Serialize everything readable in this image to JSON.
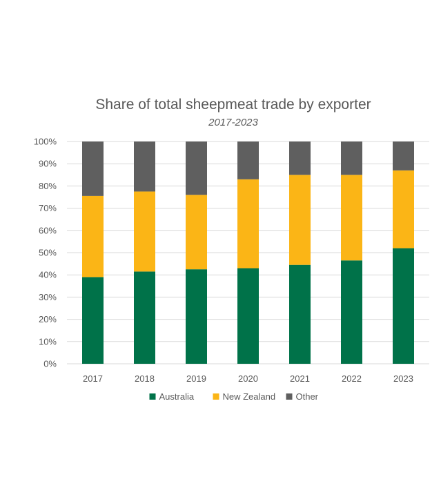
{
  "chart_data": {
    "type": "bar",
    "stacked": true,
    "title": "Share of total sheepmeat trade by exporter",
    "subtitle": "2017-2023",
    "xlabel": "",
    "ylabel": "",
    "categories": [
      "2017",
      "2018",
      "2019",
      "2020",
      "2021",
      "2022",
      "2023"
    ],
    "y_ticks": [
      "0%",
      "10%",
      "20%",
      "30%",
      "40%",
      "50%",
      "60%",
      "70%",
      "80%",
      "90%",
      "100%"
    ],
    "ylim": [
      0,
      100
    ],
    "grid": true,
    "legend_position": "bottom",
    "series": [
      {
        "name": "Australia",
        "color": "#007249",
        "values": [
          39,
          41.5,
          42.5,
          43,
          44.5,
          46.5,
          52
        ]
      },
      {
        "name": "New Zealand",
        "color": "#fbb516",
        "values": [
          36.5,
          36,
          33.5,
          40,
          40.5,
          38.5,
          35
        ]
      },
      {
        "name": "Other",
        "color": "#5f5f5f",
        "values": [
          24.5,
          22.5,
          24,
          17,
          15,
          15,
          13
        ]
      }
    ]
  }
}
